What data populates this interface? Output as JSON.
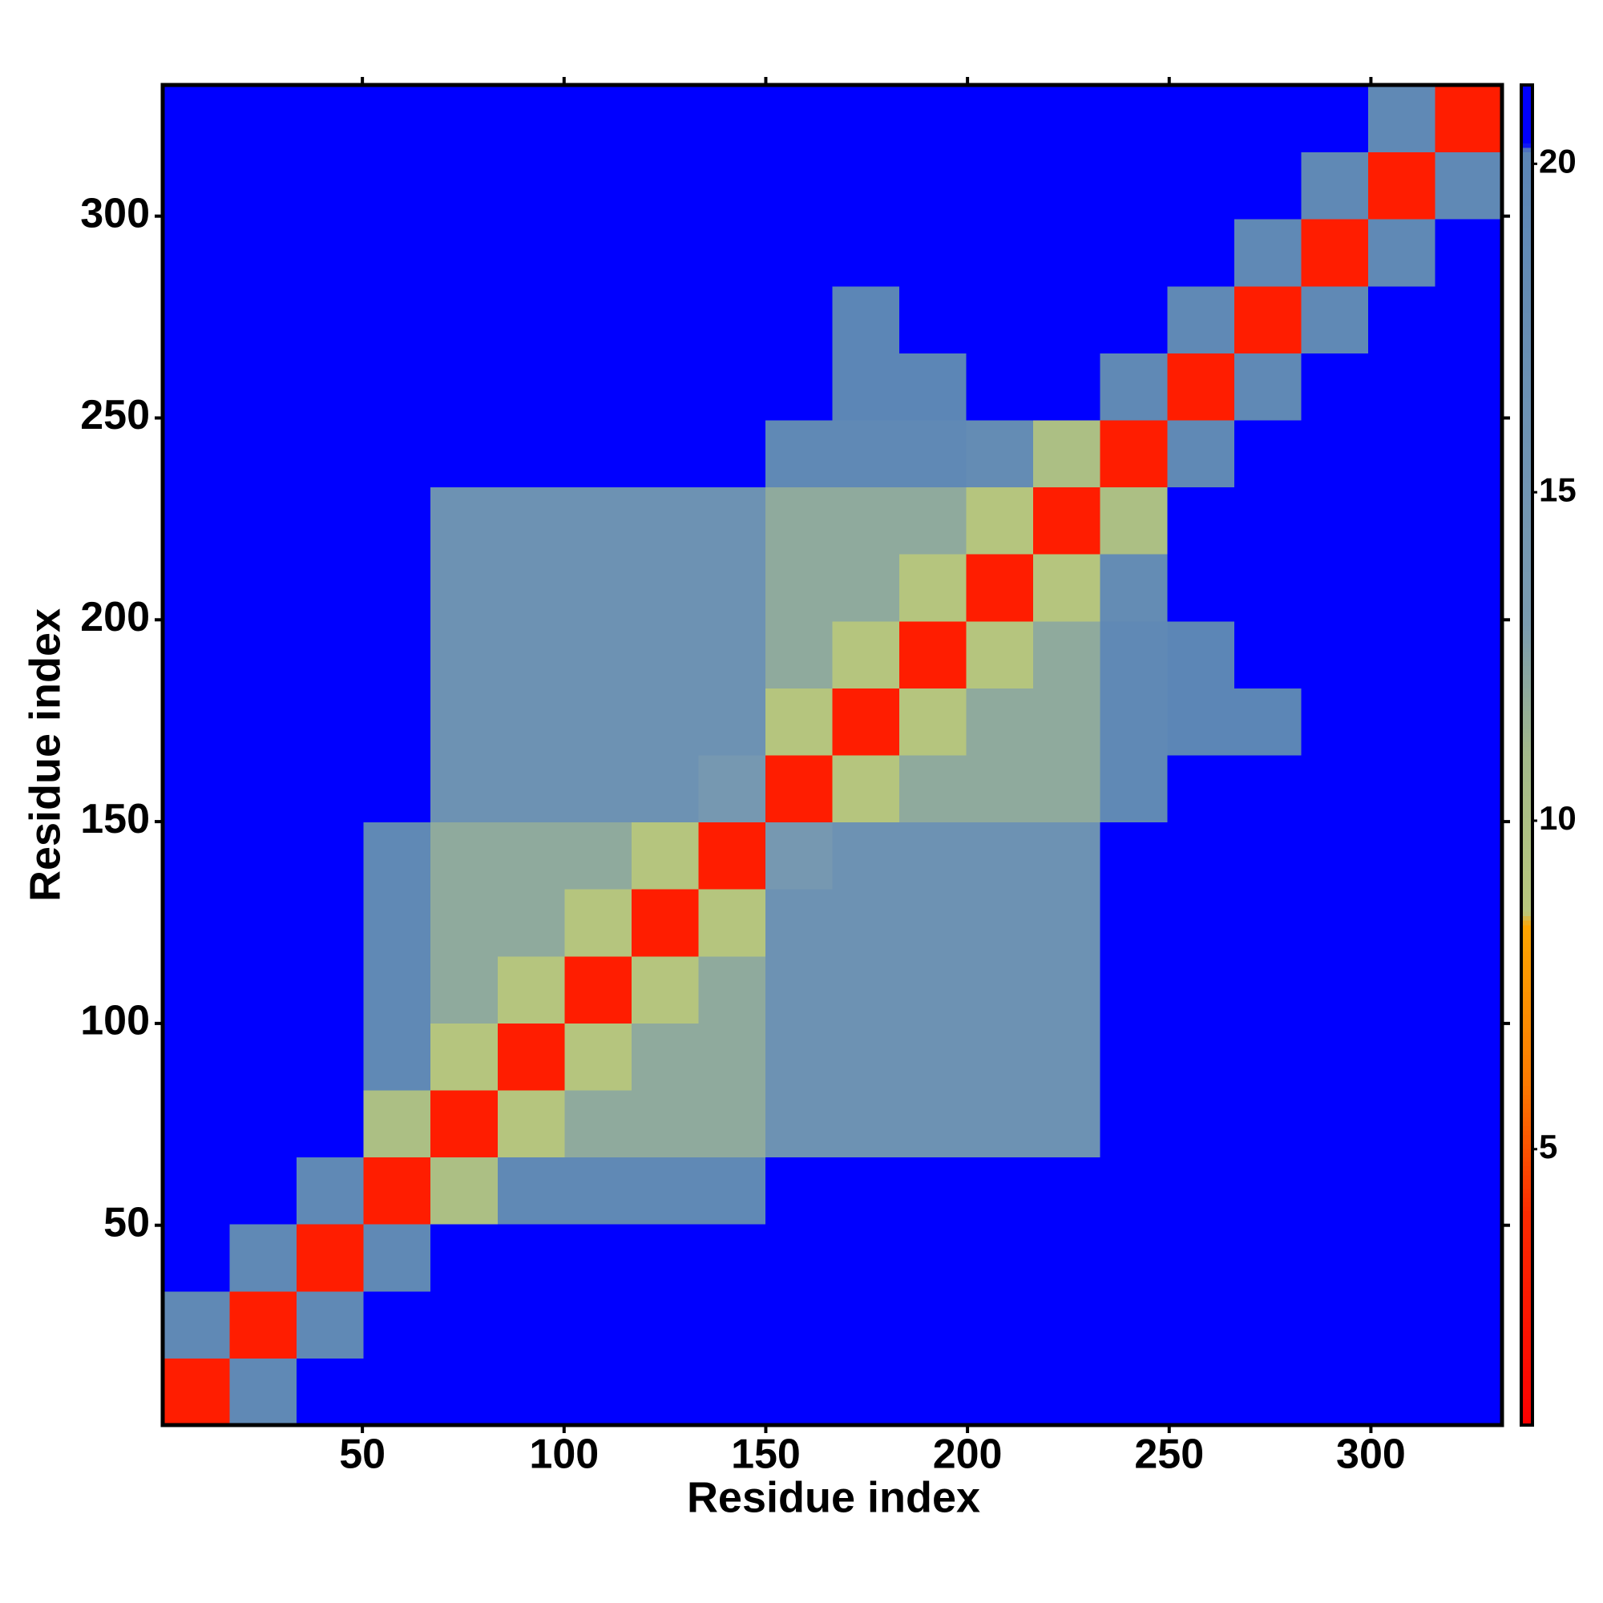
{
  "chart_data": {
    "type": "heatmap",
    "xlabel": "Residue index",
    "ylabel": "Residue index",
    "xlim": [
      0.5,
      332.5
    ],
    "ylim": [
      0.5,
      332.5
    ],
    "xticks": [
      50,
      100,
      150,
      200,
      250,
      300
    ],
    "yticks": [
      50,
      100,
      150,
      200,
      250,
      300
    ],
    "x_bins": [
      0.5,
      17.1,
      33.7,
      50.3,
      66.9,
      83.5,
      100.1,
      116.7,
      133.3,
      149.9,
      166.5,
      183.1,
      199.7,
      216.3,
      232.9,
      249.5,
      266.1,
      282.7,
      299.3,
      315.9,
      332.5
    ],
    "y_bins": [
      0.5,
      17.1,
      33.7,
      50.3,
      66.9,
      83.5,
      100.1,
      116.7,
      133.3,
      149.9,
      166.5,
      183.1,
      199.7,
      216.3,
      232.9,
      249.5,
      266.1,
      282.7,
      299.3,
      315.9,
      332.5
    ],
    "z": [
      [
        3,
        19,
        21,
        21,
        21,
        21,
        21,
        21,
        21,
        21,
        21,
        21,
        21,
        21,
        21,
        21,
        21,
        21,
        21,
        21
      ],
      [
        19,
        3,
        19,
        21,
        21,
        21,
        21,
        21,
        21,
        21,
        21,
        21,
        21,
        21,
        21,
        21,
        21,
        21,
        21,
        21
      ],
      [
        21,
        19,
        3,
        19,
        21,
        21,
        21,
        21,
        21,
        21,
        21,
        21,
        21,
        21,
        21,
        21,
        21,
        21,
        21,
        21
      ],
      [
        21,
        21,
        19,
        3,
        10,
        19,
        19,
        19,
        19,
        21,
        21,
        21,
        21,
        21,
        21,
        21,
        21,
        21,
        21,
        21
      ],
      [
        21,
        21,
        21,
        10,
        3,
        9,
        12,
        12,
        12,
        16,
        16,
        16,
        16,
        16,
        21,
        21,
        21,
        21,
        21,
        21
      ],
      [
        21,
        21,
        21,
        19,
        9,
        3,
        9,
        12,
        12,
        16,
        16,
        16,
        16,
        16,
        21,
        21,
        21,
        21,
        21,
        21
      ],
      [
        21,
        21,
        21,
        19,
        12,
        9,
        3,
        9,
        12,
        16,
        16,
        16,
        16,
        16,
        21,
        21,
        21,
        21,
        21,
        21
      ],
      [
        21,
        21,
        21,
        19,
        12,
        12,
        9,
        3,
        9,
        16,
        16,
        16,
        16,
        16,
        21,
        21,
        21,
        21,
        21,
        21
      ],
      [
        21,
        21,
        21,
        19,
        12,
        12,
        12,
        9,
        3,
        14,
        16,
        16,
        16,
        16,
        21,
        21,
        21,
        21,
        21,
        21
      ],
      [
        21,
        21,
        21,
        21,
        16,
        16,
        16,
        16,
        14,
        3,
        9,
        12,
        12,
        12,
        19,
        21,
        21,
        21,
        21,
        21
      ],
      [
        21,
        21,
        21,
        21,
        16,
        16,
        16,
        16,
        16,
        9,
        3,
        9,
        12,
        12,
        19,
        20,
        20,
        21,
        21,
        21
      ],
      [
        21,
        21,
        21,
        21,
        16,
        16,
        16,
        16,
        16,
        12,
        9,
        3,
        9,
        12,
        19,
        20,
        21,
        21,
        21,
        21
      ],
      [
        21,
        21,
        21,
        21,
        16,
        16,
        16,
        16,
        16,
        12,
        12,
        9,
        3,
        9,
        18,
        21,
        21,
        21,
        21,
        21
      ],
      [
        21,
        21,
        21,
        21,
        16,
        16,
        16,
        16,
        16,
        12,
        12,
        12,
        9,
        3,
        10,
        21,
        21,
        21,
        21,
        21
      ],
      [
        21,
        21,
        21,
        21,
        21,
        21,
        21,
        21,
        21,
        19,
        19,
        19,
        18,
        10,
        3,
        19,
        21,
        21,
        21,
        21
      ],
      [
        21,
        21,
        21,
        21,
        21,
        21,
        21,
        21,
        21,
        21,
        20,
        20,
        21,
        21,
        19,
        3,
        19,
        21,
        21,
        21
      ],
      [
        21,
        21,
        21,
        21,
        21,
        21,
        21,
        21,
        21,
        21,
        20,
        21,
        21,
        21,
        21,
        19,
        3,
        19,
        21,
        21
      ],
      [
        21,
        21,
        21,
        21,
        21,
        21,
        21,
        21,
        21,
        21,
        21,
        21,
        21,
        21,
        21,
        21,
        19,
        3,
        19,
        21
      ],
      [
        21,
        21,
        21,
        21,
        21,
        21,
        21,
        21,
        21,
        21,
        21,
        21,
        21,
        21,
        21,
        21,
        21,
        19,
        3,
        19
      ],
      [
        21,
        21,
        21,
        21,
        21,
        21,
        21,
        21,
        21,
        21,
        21,
        21,
        21,
        21,
        21,
        21,
        21,
        21,
        19,
        3
      ]
    ],
    "colorbar": {
      "lim": [
        0.8,
        21.2
      ],
      "ticks": [
        5,
        10,
        15,
        20
      ],
      "stops": [
        [
          0.8,
          "#ff0000"
        ],
        [
          4,
          "#ff2a00"
        ],
        [
          6,
          "#ff7a00"
        ],
        [
          8.4,
          "#ffa500"
        ],
        [
          8.6,
          "#b9c77c"
        ],
        [
          11,
          "#a3b98a"
        ],
        [
          13,
          "#7a9bb0"
        ],
        [
          20.2,
          "#5b85b6"
        ],
        [
          20.3,
          "#0000ff"
        ],
        [
          21.2,
          "#0000ff"
        ]
      ]
    }
  }
}
